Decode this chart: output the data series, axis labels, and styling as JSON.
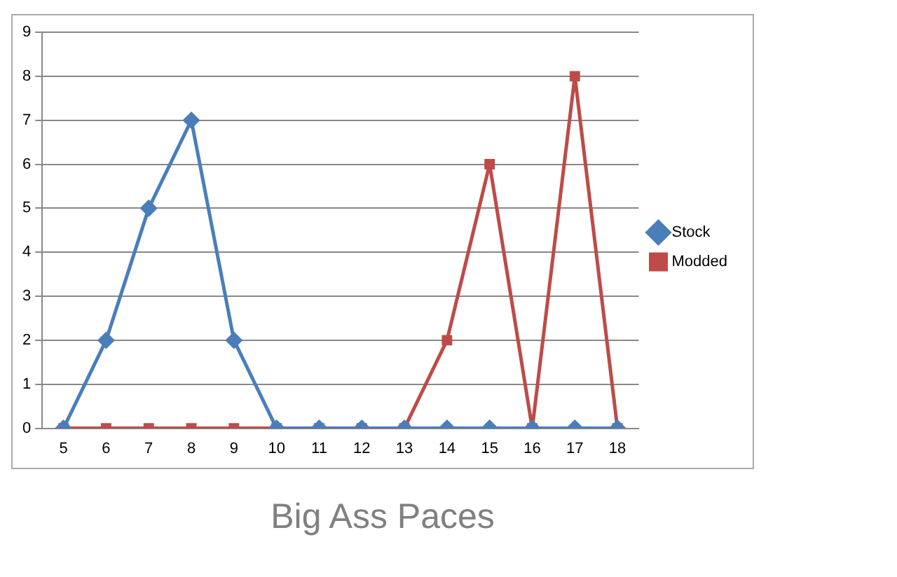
{
  "chart_data": {
    "type": "line",
    "title": "Big Ass Paces",
    "categories": [
      "5",
      "6",
      "7",
      "8",
      "9",
      "10",
      "11",
      "12",
      "13",
      "14",
      "15",
      "16",
      "17",
      "18"
    ],
    "series": [
      {
        "name": "Stock",
        "color": "#4a7ebb",
        "marker": "diamond",
        "values": [
          0,
          2,
          5,
          7,
          2,
          0,
          0,
          0,
          0,
          0,
          0,
          0,
          0,
          0
        ]
      },
      {
        "name": "Modded",
        "color": "#be4b48",
        "marker": "square",
        "values": [
          0,
          0,
          0,
          0,
          0,
          0,
          0,
          0,
          0,
          2,
          6,
          0,
          8,
          0
        ]
      }
    ],
    "ylim": [
      0,
      9
    ],
    "yticks": [
      0,
      1,
      2,
      3,
      4,
      5,
      6,
      7,
      8,
      9
    ],
    "grid": "y",
    "legend": "right",
    "line_style": "solid"
  }
}
